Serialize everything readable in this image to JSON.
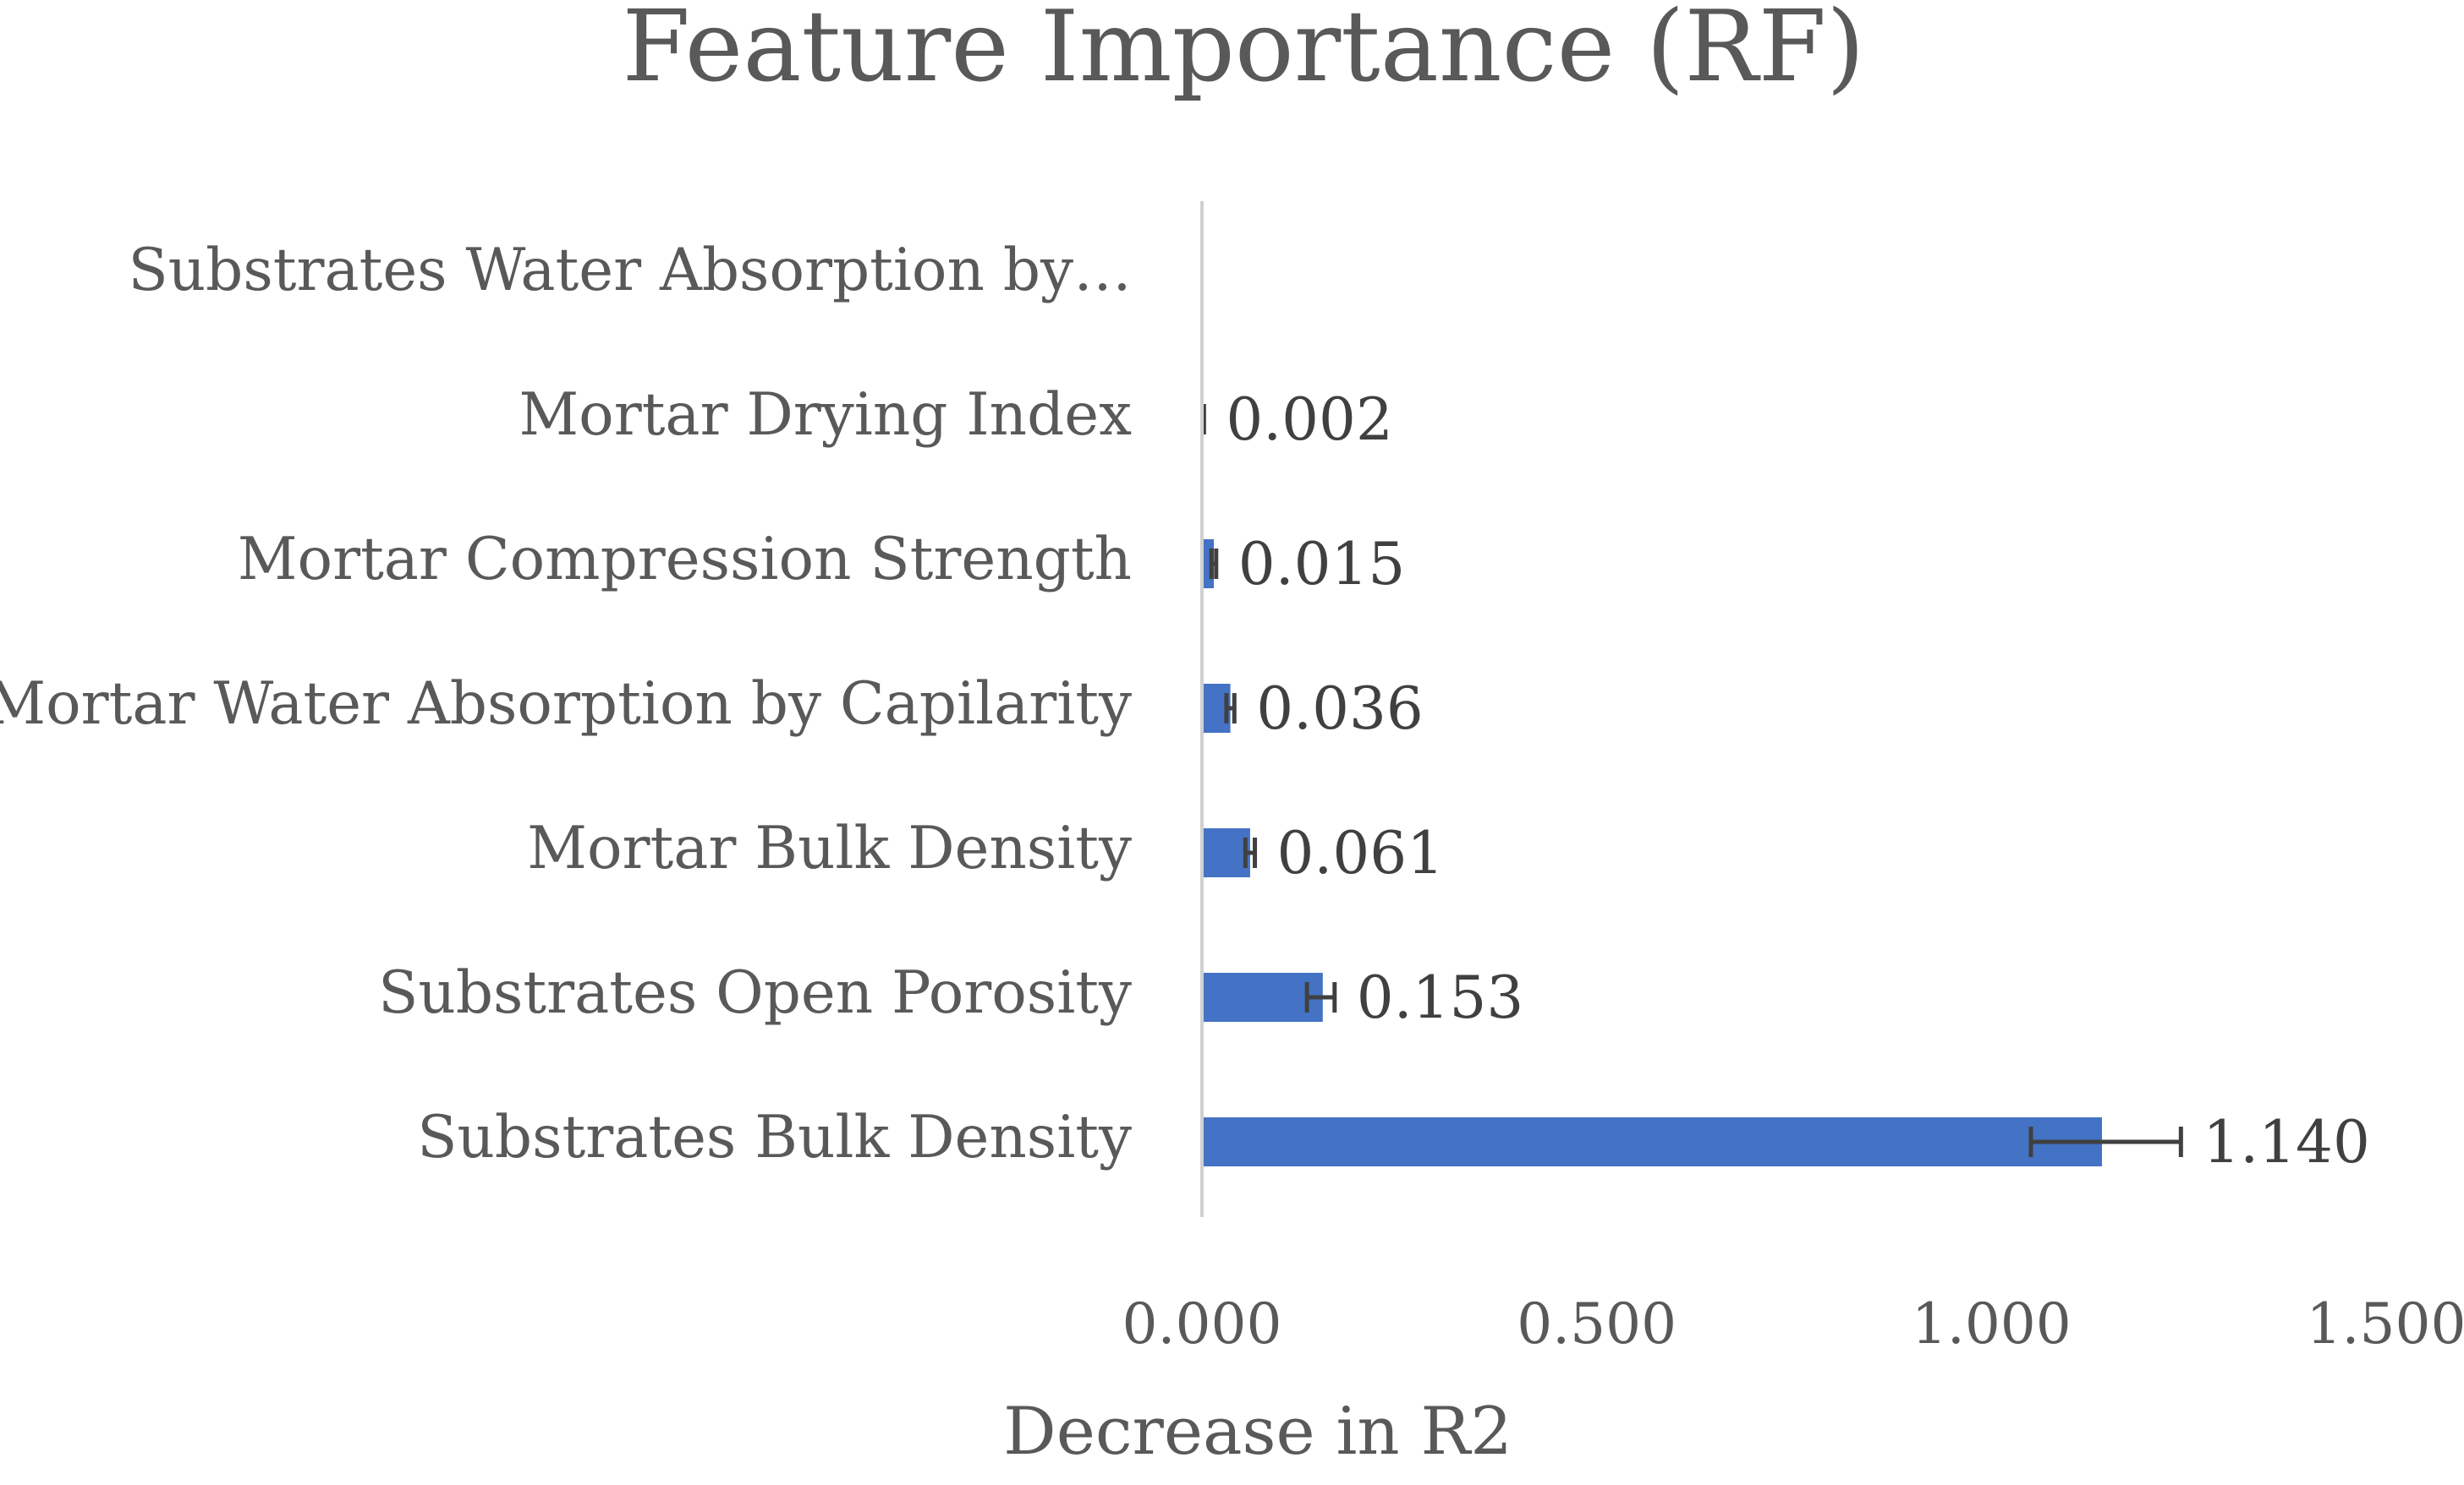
{
  "chart_data": {
    "type": "bar",
    "orientation": "horizontal",
    "title": "Feature Importance (RF)",
    "xlabel": "Decrease in R2",
    "ylabel": "",
    "xlim": [
      0,
      1.5
    ],
    "xticks": [
      0,
      0.5,
      1.0,
      1.5
    ],
    "xtick_labels": [
      "0.000",
      "0.500",
      "1.000",
      "1.500"
    ],
    "grid": false,
    "legend": "none",
    "bar_color": "#4472C4",
    "error_bar_color": "#404040",
    "categories": [
      "Substrates Water Absorption by…",
      "Mortar Drying Index",
      "Mortar Compression Strength",
      "Mortar Water Absorption by Capilarity",
      "Mortar Bulk Density",
      "Substrates Open Porosity",
      "Substrates Bulk Density"
    ],
    "values": [
      0.0,
      0.002,
      0.015,
      0.036,
      0.061,
      0.153,
      1.14
    ],
    "value_labels": [
      "",
      "0.002",
      "0.015",
      "0.036",
      "0.061",
      "0.153",
      "1.140"
    ],
    "error_minus": [
      0.0,
      0.0005,
      0.003,
      0.005,
      0.006,
      0.02,
      0.09
    ],
    "error_plus": [
      0.0,
      0.0005,
      0.003,
      0.005,
      0.006,
      0.015,
      0.1
    ]
  }
}
